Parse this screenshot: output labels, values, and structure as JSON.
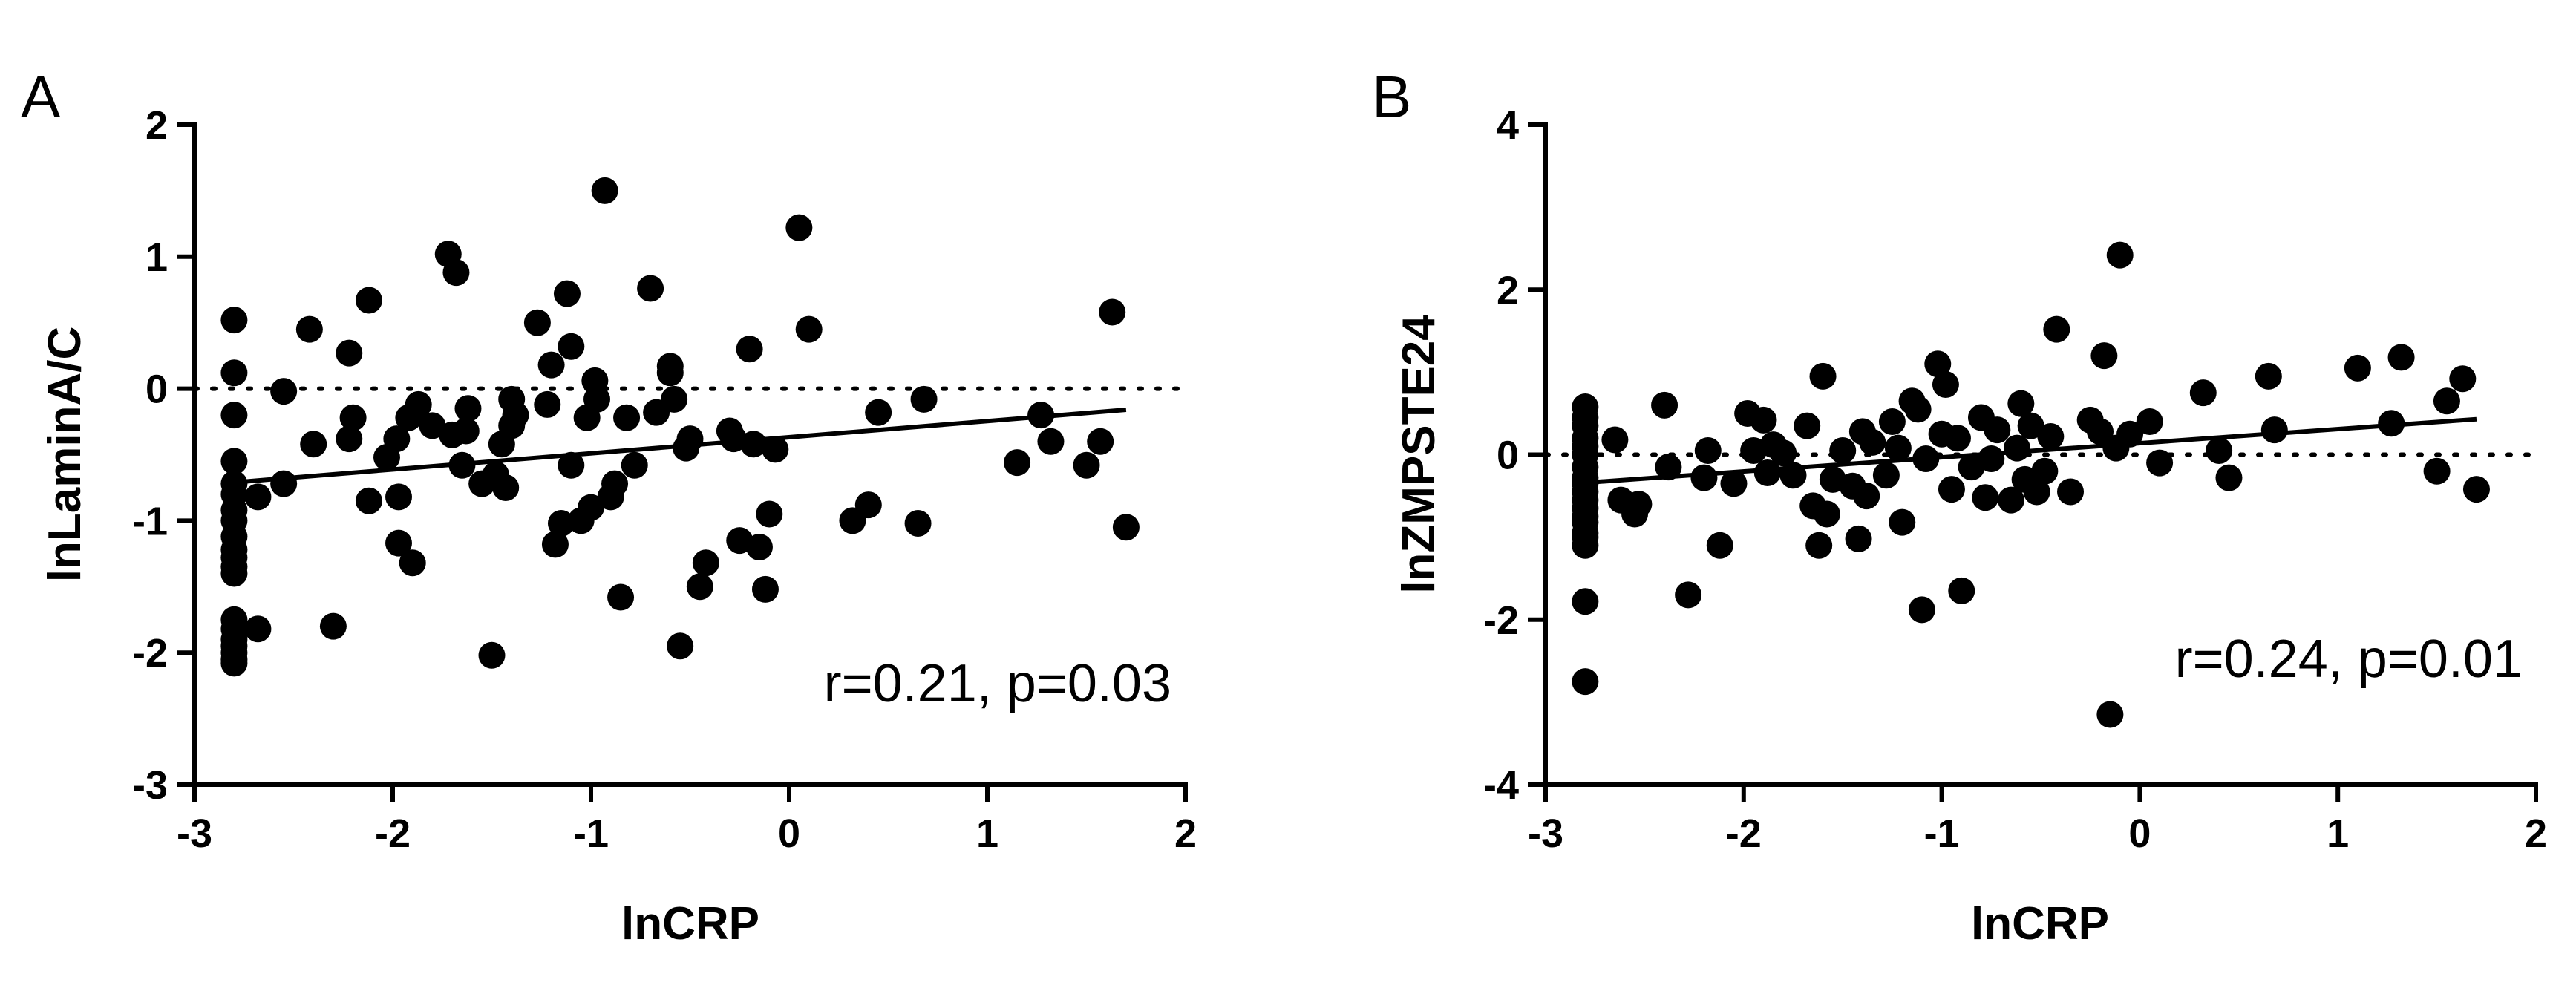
{
  "chart_data": [
    {
      "type": "scatter",
      "panel_label": "A",
      "xlabel": "lnCRP",
      "ylabel": "lnLaminA/C",
      "xlim": [
        -3,
        2
      ],
      "ylim": [
        -3,
        2
      ],
      "x_ticks": [
        -3,
        -2,
        -1,
        0,
        1,
        2
      ],
      "y_ticks": [
        -3,
        -2,
        -1,
        0,
        1,
        2
      ],
      "x_tick_labels": [
        "-3",
        "-2",
        "-1",
        "0",
        "1",
        "2"
      ],
      "y_tick_labels": [
        "-3",
        "-2",
        "-1",
        "0",
        "1",
        "2"
      ],
      "reference_line_y": 0,
      "fit_line": {
        "x": [
          -2.8,
          1.7
        ],
        "y": [
          -0.71,
          -0.16
        ]
      },
      "annotation": "r=0.21, p=0.03",
      "points": {
        "x": [
          -2.8,
          -2.8,
          -2.8,
          -2.8,
          -2.8,
          -2.8,
          -2.8,
          -2.8,
          -2.8,
          -2.8,
          -2.8,
          -2.8,
          -2.8,
          -2.8,
          -2.8,
          -2.8,
          -2.8,
          -2.8,
          -2.8,
          -2.8,
          -2.68,
          -2.68,
          -2.55,
          -2.55,
          -2.42,
          -2.4,
          -2.3,
          -2.22,
          -2.22,
          -2.2,
          -2.12,
          -2.12,
          -2.03,
          -1.98,
          -1.97,
          -1.97,
          -1.92,
          -1.9,
          -1.87,
          -1.8,
          -1.72,
          -1.7,
          -1.68,
          -1.65,
          -1.63,
          -1.62,
          -1.55,
          -1.5,
          -1.48,
          -1.45,
          -1.43,
          -1.4,
          -1.4,
          -1.38,
          -1.27,
          -1.22,
          -1.2,
          -1.18,
          -1.15,
          -1.12,
          -1.1,
          -1.1,
          -1.05,
          -1.02,
          -1.0,
          -0.98,
          -0.97,
          -0.93,
          -0.9,
          -0.88,
          -0.85,
          -0.82,
          -0.78,
          -0.7,
          -0.67,
          -0.6,
          -0.6,
          -0.58,
          -0.55,
          -0.52,
          -0.5,
          -0.45,
          -0.42,
          -0.3,
          -0.28,
          -0.25,
          -0.2,
          -0.18,
          -0.15,
          -0.12,
          -0.1,
          -0.07,
          0.05,
          0.1,
          0.32,
          0.4,
          0.45,
          0.65,
          0.68,
          1.15,
          1.27,
          1.32,
          1.5,
          1.57,
          1.63,
          1.7
        ],
        "y": [
          0.52,
          0.12,
          -0.2,
          -0.55,
          -0.72,
          -0.8,
          -0.92,
          -1.0,
          -1.12,
          -1.22,
          -1.28,
          -1.35,
          -1.4,
          -1.75,
          -1.9,
          -1.95,
          -2.0,
          -2.05,
          -2.08,
          -1.82,
          -0.82,
          -1.82,
          -0.02,
          -0.72,
          0.45,
          -0.42,
          -1.8,
          0.27,
          -0.38,
          -0.22,
          0.67,
          -0.85,
          -0.52,
          -0.38,
          -0.82,
          -1.17,
          -0.22,
          -1.32,
          -0.12,
          -0.28,
          1.02,
          -0.35,
          0.88,
          -0.58,
          -0.32,
          -0.15,
          -0.72,
          -2.02,
          -0.65,
          -0.42,
          -0.75,
          -0.08,
          -0.28,
          -0.2,
          0.5,
          -0.12,
          0.18,
          -1.18,
          -1.02,
          0.72,
          0.32,
          -0.58,
          -1.0,
          -0.22,
          -0.9,
          0.06,
          -0.08,
          1.5,
          -0.82,
          -0.72,
          -1.58,
          -0.22,
          -0.58,
          0.76,
          -0.18,
          0.17,
          0.12,
          -0.08,
          -1.95,
          -0.45,
          -0.38,
          -1.5,
          -1.32,
          -0.32,
          -0.38,
          -1.15,
          0.3,
          -0.42,
          -1.2,
          -1.52,
          -0.95,
          -0.46,
          1.22,
          0.45,
          -1.0,
          -0.88,
          -0.18,
          -1.02,
          -0.08,
          -0.56,
          -0.2,
          -0.4,
          -0.58,
          -0.4,
          0.58,
          -1.05
        ]
      }
    },
    {
      "type": "scatter",
      "panel_label": "B",
      "xlabel": "lnCRP",
      "ylabel": "lnZMPSTE24",
      "xlim": [
        -3,
        2
      ],
      "ylim": [
        -4,
        4
      ],
      "x_ticks": [
        -3,
        -2,
        -1,
        0,
        1,
        2
      ],
      "y_ticks": [
        -4,
        -2,
        0,
        2,
        4
      ],
      "x_tick_labels": [
        "-3",
        "-2",
        "-1",
        "0",
        "1",
        "2"
      ],
      "y_tick_labels": [
        "-4",
        "-2",
        "0",
        "2",
        "4"
      ],
      "reference_line_y": 0,
      "fit_line": {
        "x": [
          -2.8,
          1.7
        ],
        "y": [
          -0.34,
          0.43
        ]
      },
      "annotation": "r=0.24, p=0.01",
      "points": {
        "x": [
          -2.8,
          -2.8,
          -2.8,
          -2.8,
          -2.8,
          -2.8,
          -2.8,
          -2.8,
          -2.8,
          -2.8,
          -2.8,
          -2.8,
          -2.8,
          -2.8,
          -2.8,
          -2.8,
          -2.8,
          -2.8,
          -2.8,
          -2.65,
          -2.62,
          -2.55,
          -2.53,
          -2.4,
          -2.38,
          -2.28,
          -2.2,
          -2.18,
          -2.12,
          -2.05,
          -1.98,
          -1.95,
          -1.9,
          -1.88,
          -1.85,
          -1.8,
          -1.75,
          -1.68,
          -1.65,
          -1.62,
          -1.6,
          -1.58,
          -1.55,
          -1.5,
          -1.45,
          -1.42,
          -1.4,
          -1.38,
          -1.35,
          -1.28,
          -1.25,
          -1.22,
          -1.2,
          -1.15,
          -1.12,
          -1.1,
          -1.08,
          -1.02,
          -1.0,
          -0.98,
          -0.95,
          -0.92,
          -0.9,
          -0.85,
          -0.8,
          -0.78,
          -0.75,
          -0.72,
          -0.65,
          -0.62,
          -0.6,
          -0.58,
          -0.55,
          -0.52,
          -0.48,
          -0.45,
          -0.42,
          -0.35,
          -0.25,
          -0.2,
          -0.18,
          -0.15,
          -0.12,
          -0.1,
          -0.05,
          0.05,
          0.1,
          0.32,
          0.4,
          0.45,
          0.65,
          0.68,
          1.1,
          1.27,
          1.32,
          1.5,
          1.55,
          1.63,
          1.7
        ],
        "y": [
          0.58,
          0.45,
          0.35,
          0.2,
          0.1,
          0.0,
          -0.15,
          -0.28,
          -0.35,
          -0.45,
          -0.55,
          -0.65,
          -0.75,
          -0.82,
          -0.95,
          -1.0,
          -1.1,
          -1.78,
          -2.75,
          0.18,
          -0.55,
          -0.72,
          -0.6,
          0.6,
          -0.15,
          -1.7,
          -0.28,
          0.05,
          -1.1,
          -0.35,
          0.5,
          0.05,
          0.42,
          -0.22,
          0.12,
          0.02,
          -0.25,
          0.35,
          -0.62,
          -1.1,
          0.95,
          -0.72,
          -0.3,
          0.05,
          -0.38,
          -1.02,
          0.28,
          -0.5,
          0.15,
          -0.25,
          0.4,
          0.08,
          -0.82,
          0.65,
          0.55,
          -1.88,
          -0.05,
          1.1,
          0.25,
          0.85,
          -0.42,
          0.2,
          -1.65,
          -0.15,
          0.45,
          -0.52,
          -0.05,
          0.3,
          -0.55,
          0.08,
          0.62,
          -0.3,
          0.35,
          -0.45,
          -0.2,
          0.22,
          1.52,
          -0.45,
          0.42,
          0.28,
          1.2,
          -3.15,
          0.08,
          2.42,
          0.25,
          0.4,
          -0.1,
          0.75,
          0.05,
          -0.28,
          0.95,
          0.3,
          1.05,
          0.38,
          1.18,
          -0.2,
          0.65,
          0.92,
          -0.42
        ]
      }
    }
  ]
}
